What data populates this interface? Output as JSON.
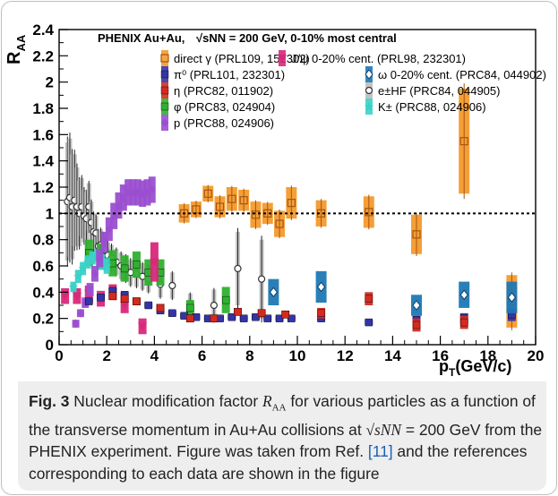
{
  "figure": {
    "caption_label": "Fig. 3",
    "caption_part1": "Nuclear modification factor ",
    "caption_symbol": "R",
    "caption_symbol_sub": "AA",
    "caption_part2": " for various particles as a function of the transverse momentum in Au+Au collisions at ",
    "caption_formula": "√sNN",
    "caption_part3": " = 200 GeV from the PHENIX experiment. Figure was taken from Ref. ",
    "caption_ref": "[11]",
    "caption_part4": " and the references corresponding to each data are shown in the figure"
  },
  "chart_data": {
    "type": "scatter",
    "title": "PHENIX Au+Au, √sNN = 200 GeV, 0-10% most central",
    "ylabel": "R_AA",
    "xlabel": "p_T(GeV/c)",
    "xlim": [
      0,
      20
    ],
    "ylim": [
      0,
      2.4
    ],
    "xticks": [
      0,
      2,
      4,
      6,
      8,
      10,
      12,
      14,
      16,
      18,
      20
    ],
    "yticks": [
      0,
      0.2,
      0.4,
      0.6,
      0.8,
      1,
      1.2,
      1.4,
      1.6,
      1.8,
      2,
      2.2,
      2.4
    ],
    "reference_line": 1,
    "series": [
      {
        "name": "direct γ (PRL109, 152302)",
        "color": "#f39a2c",
        "marker": "square-open",
        "points": [
          [
            5.25,
            1.0,
            0.07
          ],
          [
            5.75,
            1.03,
            0.06
          ],
          [
            6.25,
            1.15,
            0.06
          ],
          [
            6.75,
            1.05,
            0.08
          ],
          [
            7.25,
            1.11,
            0.09
          ],
          [
            7.75,
            1.1,
            0.08
          ],
          [
            8.25,
            0.99,
            0.1
          ],
          [
            8.75,
            1.0,
            0.08
          ],
          [
            9.25,
            0.92,
            0.1
          ],
          [
            9.75,
            1.08,
            0.12
          ],
          [
            11,
            1.0,
            0.1
          ],
          [
            13,
            1.01,
            0.12
          ],
          [
            15,
            0.84,
            0.15
          ],
          [
            17,
            1.55,
            0.4
          ],
          [
            19,
            0.33,
            0.2
          ]
        ]
      },
      {
        "name": "π⁰ (PRL101, 232301)",
        "color": "#3434a8",
        "marker": "square",
        "points": [
          [
            1.25,
            0.33,
            0.02
          ],
          [
            1.75,
            0.36,
            0.02
          ],
          [
            2.25,
            0.41,
            0.02
          ],
          [
            2.75,
            0.38,
            0.02
          ],
          [
            3.25,
            0.33,
            0.02
          ],
          [
            3.75,
            0.3,
            0.02
          ],
          [
            4.25,
            0.26,
            0.02
          ],
          [
            4.75,
            0.24,
            0.02
          ],
          [
            5.25,
            0.22,
            0.02
          ],
          [
            5.75,
            0.21,
            0.02
          ],
          [
            6.25,
            0.2,
            0.02
          ],
          [
            6.75,
            0.2,
            0.02
          ],
          [
            7.25,
            0.21,
            0.02
          ],
          [
            7.75,
            0.2,
            0.02
          ],
          [
            8.25,
            0.21,
            0.02
          ],
          [
            8.75,
            0.2,
            0.02
          ],
          [
            9.25,
            0.2,
            0.02
          ],
          [
            9.75,
            0.2,
            0.02
          ],
          [
            11,
            0.2,
            0.02
          ],
          [
            13,
            0.17,
            0.02
          ],
          [
            15,
            0.19,
            0.03
          ],
          [
            17,
            0.2,
            0.04
          ],
          [
            19,
            0.23,
            0.05
          ]
        ]
      },
      {
        "name": "η (PRC82, 011902)",
        "color": "#d42a1f",
        "marker": "square",
        "points": [
          [
            2.25,
            0.37,
            0.03
          ],
          [
            2.75,
            0.35,
            0.03
          ],
          [
            3.25,
            0.33,
            0.03
          ],
          [
            4.25,
            0.28,
            0.03
          ],
          [
            5.5,
            0.2,
            0.03
          ],
          [
            6.5,
            0.2,
            0.03
          ],
          [
            7.5,
            0.25,
            0.03
          ],
          [
            8.5,
            0.24,
            0.03
          ],
          [
            9.5,
            0.23,
            0.03
          ],
          [
            11,
            0.24,
            0.04
          ],
          [
            13,
            0.35,
            0.05
          ],
          [
            15,
            0.15,
            0.05
          ],
          [
            17,
            0.17,
            0.05
          ]
        ]
      },
      {
        "name": "φ (PRC83, 024904)",
        "color": "#2fb02f",
        "marker": "square",
        "points": [
          [
            1.25,
            0.7,
            0.1
          ],
          [
            1.75,
            0.67,
            0.1
          ],
          [
            2.25,
            0.62,
            0.1
          ],
          [
            2.75,
            0.58,
            0.1
          ],
          [
            3.25,
            0.61,
            0.1
          ],
          [
            3.75,
            0.55,
            0.1
          ],
          [
            4.25,
            0.55,
            0.1
          ],
          [
            5.5,
            0.28,
            0.06
          ],
          [
            7,
            0.34,
            0.1
          ]
        ]
      },
      {
        "name": "p (PRC88, 024906)",
        "color": "#9b4fd0",
        "marker": "diamond",
        "points": [
          [
            0.7,
            0.16,
            0.03
          ],
          [
            0.9,
            0.24,
            0.03
          ],
          [
            1.1,
            0.32,
            0.04
          ],
          [
            1.3,
            0.42,
            0.05
          ],
          [
            1.5,
            0.54,
            0.06
          ],
          [
            1.7,
            0.66,
            0.07
          ],
          [
            1.9,
            0.78,
            0.08
          ],
          [
            2.1,
            0.88,
            0.09
          ],
          [
            2.3,
            0.98,
            0.1
          ],
          [
            2.5,
            1.06,
            0.1
          ],
          [
            2.7,
            1.12,
            0.1
          ],
          [
            2.9,
            1.16,
            0.1
          ],
          [
            3.1,
            1.16,
            0.1
          ],
          [
            3.3,
            1.16,
            0.1
          ],
          [
            3.5,
            1.15,
            0.1
          ],
          [
            3.7,
            1.16,
            0.1
          ],
          [
            3.9,
            1.18,
            0.1
          ]
        ]
      },
      {
        "name": "J/ψ 0-20% cent. (PRL98, 232301)",
        "color": "#d8287a",
        "marker": "triangle-down",
        "points": [
          [
            0.25,
            0.37,
            0.06
          ],
          [
            0.75,
            0.37,
            0.06
          ],
          [
            1.25,
            0.39,
            0.06
          ],
          [
            1.75,
            0.35,
            0.06
          ],
          [
            2.25,
            0.4,
            0.06
          ],
          [
            2.75,
            0.3,
            0.06
          ],
          [
            3.5,
            0.14,
            0.06
          ],
          [
            4,
            0.63,
            0.15
          ]
        ]
      },
      {
        "name": "ω 0-20% cent. (PRC84, 044902)",
        "color": "#1f78b4",
        "marker": "diamond-open",
        "points": [
          [
            9,
            0.4,
            0.1
          ],
          [
            11,
            0.44,
            0.12
          ],
          [
            15,
            0.3,
            0.08
          ],
          [
            17,
            0.38,
            0.1
          ],
          [
            19,
            0.36,
            0.12
          ]
        ]
      },
      {
        "name": "e±HF (PRC84, 044905)",
        "color": "#555555",
        "marker": "circle-open",
        "points": [
          [
            0.35,
            1.09,
            0.45
          ],
          [
            0.45,
            1.12,
            0.45
          ],
          [
            0.55,
            1.05,
            0.4
          ],
          [
            0.65,
            1.1,
            0.35
          ],
          [
            0.75,
            1.05,
            0.3
          ],
          [
            0.85,
            1.0,
            0.25
          ],
          [
            0.95,
            1.05,
            0.22
          ],
          [
            1.05,
            0.98,
            0.2
          ],
          [
            1.15,
            0.96,
            0.2
          ],
          [
            1.25,
            1.05,
            0.18
          ],
          [
            1.35,
            0.93,
            0.16
          ],
          [
            1.45,
            0.86,
            0.14
          ],
          [
            1.55,
            0.85,
            0.13
          ],
          [
            1.65,
            0.75,
            0.12
          ],
          [
            1.75,
            0.76,
            0.12
          ],
          [
            1.85,
            0.75,
            0.1
          ],
          [
            1.95,
            0.72,
            0.1
          ],
          [
            2.05,
            0.68,
            0.1
          ],
          [
            2.2,
            0.66,
            0.1
          ],
          [
            2.4,
            0.63,
            0.1
          ],
          [
            2.6,
            0.6,
            0.1
          ],
          [
            2.8,
            0.58,
            0.1
          ],
          [
            3.0,
            0.55,
            0.1
          ],
          [
            3.25,
            0.54,
            0.1
          ],
          [
            3.5,
            0.52,
            0.1
          ],
          [
            3.75,
            0.5,
            0.1
          ],
          [
            4.25,
            0.46,
            0.1
          ],
          [
            4.75,
            0.45,
            0.1
          ],
          [
            5.5,
            0.31,
            0.08
          ],
          [
            6.5,
            0.3,
            0.12
          ],
          [
            7.5,
            0.58,
            0.28
          ],
          [
            8.5,
            0.5,
            0.3
          ]
        ]
      },
      {
        "name": "K± (PRC88, 024906)",
        "color": "#3ad1c6",
        "marker": "star",
        "points": [
          [
            0.6,
            0.44,
            0.04
          ],
          [
            0.8,
            0.52,
            0.05
          ],
          [
            1.0,
            0.58,
            0.05
          ],
          [
            1.2,
            0.63,
            0.05
          ],
          [
            1.4,
            0.66,
            0.05
          ],
          [
            1.6,
            0.68,
            0.05
          ],
          [
            1.8,
            0.63,
            0.06
          ],
          [
            2.0,
            0.6,
            0.06
          ]
        ]
      }
    ]
  }
}
